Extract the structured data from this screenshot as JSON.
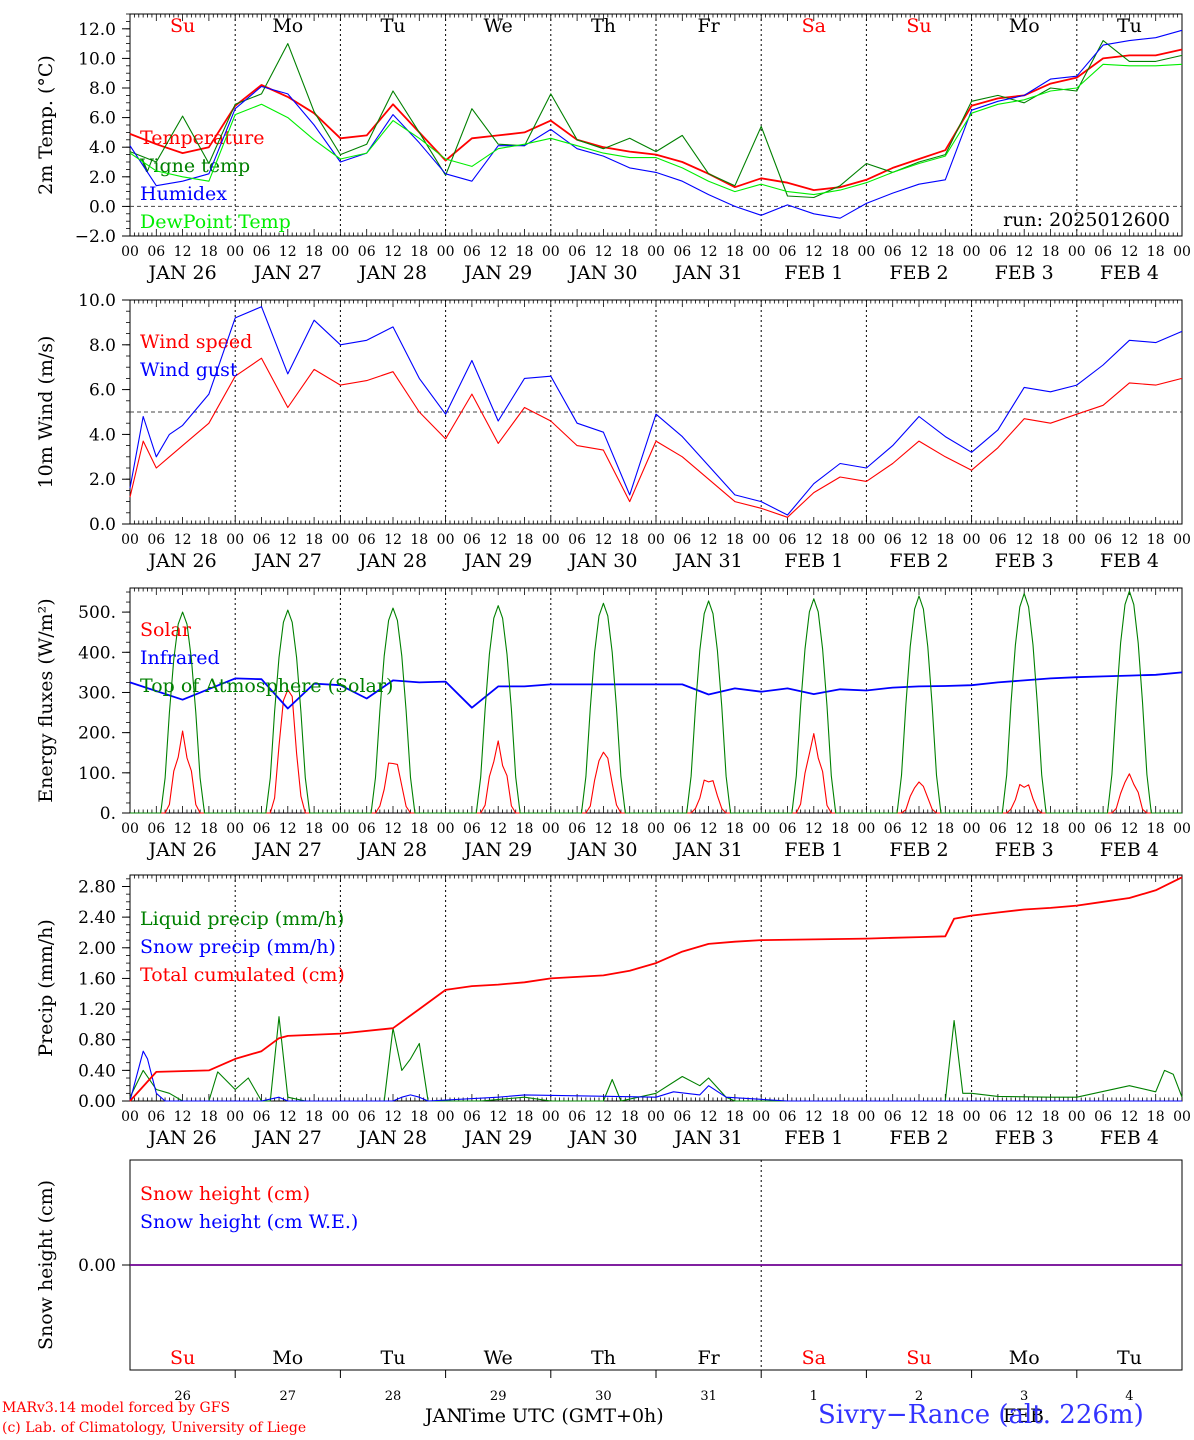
{
  "days": {
    "weekday_names": [
      "Su",
      "Mo",
      "Tu",
      "We",
      "Th",
      "Fr",
      "Sa",
      "Su",
      "Mo",
      "Tu"
    ],
    "weekday_colors": [
      "#ff0000",
      "#000000",
      "#000000",
      "#000000",
      "#000000",
      "#000000",
      "#ff0000",
      "#ff0000",
      "#000000",
      "#000000"
    ],
    "month_labels": [
      "JAN",
      "JAN",
      "JAN",
      "JAN",
      "JAN",
      "JAN",
      "FEB",
      "FEB",
      "FEB",
      "FEB"
    ],
    "day_numbers": [
      "26",
      "27",
      "28",
      "29",
      "30",
      "31",
      "1",
      "2",
      "3",
      "4"
    ],
    "hour_ticks": [
      "00",
      "06",
      "12",
      "18"
    ],
    "final_tick": "00"
  },
  "chart_data": [
    {
      "type": "line",
      "ylabel": "2m Temp. (°C)",
      "ylim": [
        -2,
        13
      ],
      "yticks": [
        "12.0",
        "10.0",
        "8.0",
        "6.0",
        "4.0",
        "2.0",
        "0.0",
        "−2.0"
      ],
      "ytick_values": [
        12,
        10,
        8,
        6,
        4,
        2,
        0,
        -2
      ],
      "refline": 0,
      "annotation": "run: 2025012600",
      "x_unit": "hours since 00 JAN 26",
      "series": [
        {
          "name": "Temperature",
          "color": "#ff0000",
          "x": [
            0,
            6,
            12,
            18,
            24,
            30,
            36,
            42,
            48,
            54,
            60,
            66,
            72,
            78,
            84,
            90,
            96,
            102,
            108,
            114,
            120,
            126,
            132,
            138,
            144,
            150,
            156,
            162,
            168,
            174,
            180,
            186,
            192,
            198,
            204,
            210,
            216,
            222,
            228,
            234,
            240
          ],
          "values": [
            4.9,
            4.2,
            3.6,
            4.0,
            6.8,
            8.2,
            7.4,
            6.3,
            4.6,
            4.8,
            6.9,
            5.0,
            3.1,
            4.6,
            4.8,
            5.0,
            5.8,
            4.5,
            4.0,
            3.7,
            3.5,
            3.0,
            2.2,
            1.3,
            1.9,
            1.6,
            1.1,
            1.3,
            1.8,
            2.6,
            3.2,
            3.8,
            6.8,
            7.3,
            7.5,
            8.3,
            8.7,
            10.0,
            10.2,
            10.2,
            10.6
          ]
        },
        {
          "name": "Vigne temp",
          "color": "#008000",
          "x": [
            0,
            6,
            12,
            18,
            24,
            30,
            36,
            42,
            48,
            54,
            60,
            66,
            72,
            78,
            84,
            90,
            96,
            102,
            108,
            114,
            120,
            126,
            132,
            138,
            144,
            150,
            156,
            162,
            168,
            174,
            180,
            186,
            192,
            198,
            204,
            210,
            216,
            222,
            228,
            234,
            240
          ],
          "values": [
            3.7,
            3.0,
            6.1,
            2.9,
            6.9,
            7.6,
            11.0,
            6.4,
            3.5,
            4.2,
            7.8,
            5.0,
            2.1,
            6.6,
            4.2,
            4.1,
            7.6,
            4.5,
            3.9,
            4.6,
            3.7,
            4.8,
            2.2,
            1.4,
            5.4,
            0.7,
            0.6,
            1.4,
            2.9,
            2.3,
            3.0,
            3.5,
            7.1,
            7.5,
            7.0,
            8.0,
            7.8,
            11.2,
            9.8,
            9.8,
            10.2
          ]
        },
        {
          "name": "Humidex",
          "color": "#0000ff",
          "x": [
            0,
            6,
            12,
            18,
            24,
            30,
            36,
            42,
            48,
            54,
            60,
            66,
            72,
            78,
            84,
            90,
            96,
            102,
            108,
            114,
            120,
            126,
            132,
            138,
            144,
            150,
            156,
            162,
            168,
            174,
            180,
            186,
            192,
            198,
            204,
            210,
            216,
            222,
            228,
            234,
            240
          ],
          "values": [
            4.1,
            1.4,
            1.7,
            2.2,
            6.6,
            8.1,
            7.6,
            5.5,
            3.0,
            3.6,
            6.2,
            4.3,
            2.2,
            1.7,
            4.1,
            4.1,
            5.2,
            3.9,
            3.4,
            2.6,
            2.3,
            1.7,
            0.8,
            0.0,
            -0.6,
            0.1,
            -0.5,
            -0.8,
            0.2,
            0.9,
            1.5,
            1.8,
            6.5,
            7.1,
            7.5,
            8.6,
            8.8,
            10.9,
            11.2,
            11.4,
            11.9
          ]
        },
        {
          "name": "DewPoint Temp",
          "color": "#00ee00",
          "x": [
            0,
            6,
            12,
            18,
            24,
            30,
            36,
            42,
            48,
            54,
            60,
            66,
            72,
            78,
            84,
            90,
            96,
            102,
            108,
            114,
            120,
            126,
            132,
            138,
            144,
            150,
            156,
            162,
            168,
            174,
            180,
            186,
            192,
            198,
            204,
            210,
            216,
            222,
            228,
            234,
            240
          ],
          "values": [
            3.6,
            2.4,
            2.0,
            1.7,
            6.2,
            6.9,
            6.0,
            4.5,
            3.2,
            3.6,
            5.8,
            4.6,
            3.2,
            2.7,
            3.9,
            4.2,
            4.6,
            4.1,
            3.6,
            3.3,
            3.3,
            2.6,
            1.7,
            1.0,
            1.5,
            1.0,
            0.8,
            1.1,
            1.6,
            2.3,
            2.9,
            3.4,
            6.3,
            6.9,
            7.2,
            7.8,
            8.0,
            9.6,
            9.5,
            9.5,
            9.6
          ]
        }
      ]
    },
    {
      "type": "line",
      "ylabel": "10m Wind (m/s)",
      "ylim": [
        0,
        10
      ],
      "yticks": [
        "10.0",
        "8.0",
        "6.0",
        "4.0",
        "2.0",
        "0.0"
      ],
      "ytick_values": [
        10,
        8,
        6,
        4,
        2,
        0
      ],
      "refline": 5,
      "x_unit": "hours since 00 JAN 26",
      "series": [
        {
          "name": "Wind speed",
          "color": "#ff0000",
          "x": [
            0,
            3,
            6,
            9,
            12,
            18,
            24,
            30,
            36,
            42,
            48,
            54,
            60,
            66,
            72,
            78,
            84,
            90,
            96,
            102,
            108,
            114,
            120,
            126,
            132,
            138,
            144,
            150,
            156,
            162,
            168,
            174,
            180,
            186,
            192,
            198,
            204,
            210,
            216,
            222,
            228,
            234,
            240
          ],
          "values": [
            1.2,
            3.7,
            2.5,
            3.0,
            3.5,
            4.5,
            6.6,
            7.4,
            5.2,
            6.9,
            6.2,
            6.4,
            6.8,
            5.0,
            3.8,
            5.8,
            3.6,
            5.2,
            4.6,
            3.5,
            3.3,
            1.0,
            3.7,
            3.0,
            2.0,
            1.0,
            0.7,
            0.3,
            1.4,
            2.1,
            1.9,
            2.7,
            3.7,
            3.0,
            2.4,
            3.4,
            4.7,
            4.5,
            4.9,
            5.3,
            6.3,
            6.2,
            6.5
          ]
        },
        {
          "name": "Wind gust",
          "color": "#0000ff",
          "x": [
            0,
            3,
            6,
            9,
            12,
            18,
            24,
            30,
            36,
            42,
            48,
            54,
            60,
            66,
            72,
            78,
            84,
            90,
            96,
            102,
            108,
            114,
            120,
            126,
            132,
            138,
            144,
            150,
            156,
            162,
            168,
            174,
            180,
            186,
            192,
            198,
            204,
            210,
            216,
            222,
            228,
            234,
            240
          ],
          "values": [
            1.6,
            4.8,
            3.0,
            4.0,
            4.4,
            5.8,
            9.2,
            9.7,
            6.7,
            9.1,
            8.0,
            8.2,
            8.8,
            6.5,
            4.9,
            7.3,
            4.6,
            6.5,
            6.6,
            4.5,
            4.1,
            1.3,
            4.9,
            3.9,
            2.6,
            1.3,
            1.0,
            0.4,
            1.8,
            2.7,
            2.5,
            3.5,
            4.8,
            3.9,
            3.2,
            4.2,
            6.1,
            5.9,
            6.2,
            7.1,
            8.2,
            8.1,
            8.6
          ]
        }
      ]
    },
    {
      "type": "line",
      "ylabel": "Energy fluxes (W/m²)",
      "ylim": [
        0,
        560
      ],
      "yticks": [
        "500.",
        "400.",
        "300.",
        "200.",
        "100.",
        "0."
      ],
      "ytick_values": [
        500,
        400,
        300,
        200,
        100,
        0
      ],
      "x_unit": "hours since 00 JAN 26",
      "series": [
        {
          "name": "Solar",
          "color": "#ff0000",
          "day_peaks": [
            204,
            345,
            145,
            180,
            165,
            95,
            200,
            82,
            82,
            100
          ]
        },
        {
          "name": "Infrared",
          "color": "#0000ff",
          "x": [
            0,
            12,
            24,
            30,
            36,
            42,
            48,
            54,
            60,
            66,
            72,
            78,
            84,
            90,
            96,
            102,
            108,
            114,
            120,
            126,
            132,
            138,
            144,
            150,
            156,
            162,
            168,
            174,
            180,
            186,
            192,
            198,
            204,
            210,
            216,
            222,
            228,
            234,
            240
          ],
          "values": [
            325,
            282,
            335,
            333,
            260,
            322,
            318,
            285,
            330,
            325,
            327,
            262,
            315,
            315,
            320,
            320,
            320,
            320,
            320,
            320,
            295,
            310,
            302,
            310,
            296,
            308,
            305,
            312,
            315,
            316,
            318,
            325,
            330,
            335,
            338,
            340,
            342,
            344,
            350
          ]
        },
        {
          "name": "Top of Atmosphere (Solar)",
          "color": "#008000",
          "day_peaks": [
            500,
            505,
            510,
            516,
            522,
            528,
            533,
            540,
            546,
            552
          ]
        }
      ]
    },
    {
      "type": "line",
      "ylabel": "Precip (mm/h)",
      "ylim": [
        0,
        2.95
      ],
      "yticks": [
        "2.80",
        "2.40",
        "2.00",
        "1.60",
        "1.20",
        "0.80",
        "0.40",
        "0.00"
      ],
      "ytick_values": [
        2.8,
        2.4,
        2.0,
        1.6,
        1.2,
        0.8,
        0.4,
        0.0
      ],
      "x_unit": "hours since 00 JAN 26",
      "series": [
        {
          "name": "Liquid precip (mm/h)",
          "color": "#008000",
          "x": [
            0,
            3,
            6,
            9,
            12,
            18,
            20,
            24,
            27,
            30,
            32,
            34,
            36,
            40,
            48,
            54,
            58,
            60,
            62,
            64,
            66,
            68,
            70,
            72,
            80,
            90,
            96,
            108,
            110,
            112,
            120,
            126,
            130,
            132,
            136,
            138,
            144,
            150,
            180,
            186,
            188,
            190,
            192,
            198,
            210,
            216,
            228,
            234,
            236,
            238,
            240
          ],
          "values": [
            0.05,
            0.4,
            0.15,
            0.1,
            0.0,
            0.0,
            0.38,
            0.15,
            0.3,
            0.0,
            0.0,
            1.1,
            0.05,
            0.0,
            0.0,
            0.0,
            0.0,
            0.95,
            0.4,
            0.55,
            0.75,
            0.0,
            0.0,
            0.0,
            0.0,
            0.05,
            0.0,
            0.0,
            0.28,
            0.0,
            0.1,
            0.32,
            0.2,
            0.3,
            0.05,
            0.0,
            0.0,
            0.0,
            0.0,
            0.0,
            1.05,
            0.1,
            0.1,
            0.06,
            0.05,
            0.05,
            0.2,
            0.12,
            0.4,
            0.35,
            0.05
          ]
        },
        {
          "name": "Snow precip (mm/h)",
          "color": "#0000ff",
          "x": [
            0,
            3,
            4,
            6,
            8,
            12,
            30,
            34,
            36,
            60,
            62,
            64,
            66,
            68,
            84,
            90,
            120,
            124,
            130,
            132,
            136,
            150,
            240
          ],
          "values": [
            0.0,
            0.65,
            0.55,
            0.1,
            0.0,
            0.0,
            0.0,
            0.05,
            0.0,
            0.0,
            0.05,
            0.08,
            0.05,
            0.0,
            0.05,
            0.08,
            0.05,
            0.12,
            0.08,
            0.2,
            0.05,
            0.0,
            0.0
          ]
        },
        {
          "name": "Total cumulated (cm)",
          "color": "#ff0000",
          "x": [
            0,
            6,
            12,
            18,
            24,
            30,
            34,
            36,
            48,
            60,
            66,
            72,
            78,
            84,
            90,
            96,
            102,
            108,
            114,
            120,
            126,
            132,
            138,
            144,
            156,
            168,
            174,
            180,
            186,
            188,
            192,
            198,
            204,
            210,
            216,
            222,
            228,
            234,
            240
          ],
          "values": [
            0.0,
            0.38,
            0.39,
            0.4,
            0.55,
            0.65,
            0.82,
            0.85,
            0.88,
            0.95,
            1.2,
            1.45,
            1.5,
            1.52,
            1.55,
            1.6,
            1.62,
            1.64,
            1.7,
            1.8,
            1.95,
            2.05,
            2.08,
            2.1,
            2.11,
            2.12,
            2.13,
            2.14,
            2.15,
            2.38,
            2.42,
            2.46,
            2.5,
            2.52,
            2.55,
            2.6,
            2.65,
            2.75,
            2.92
          ]
        }
      ]
    },
    {
      "type": "line",
      "ylabel": "Snow height (cm)",
      "ylim": [
        -1,
        1
      ],
      "yticks": [
        "0.00"
      ],
      "ytick_values": [
        0
      ],
      "x_unit": "hours since 00 JAN 26",
      "series": [
        {
          "name": "Snow height (cm)",
          "color": "#ff0000",
          "x": [
            0,
            240
          ],
          "values": [
            0,
            0
          ]
        },
        {
          "name": "Snow height (cm W.E.)",
          "color": "#0000ff",
          "x": [
            0,
            240
          ],
          "values": [
            0,
            0
          ]
        }
      ]
    }
  ],
  "footer": {
    "model_line": "MARv3.14 model forced by GFS",
    "copyright_line": "(c) Lab. of Climatology, University of Liege",
    "month_left": "JAN",
    "month_right": "FEB",
    "x_title": "Time UTC (GMT+0h)",
    "station": "Sivry−Rance (alt. 226m)"
  }
}
